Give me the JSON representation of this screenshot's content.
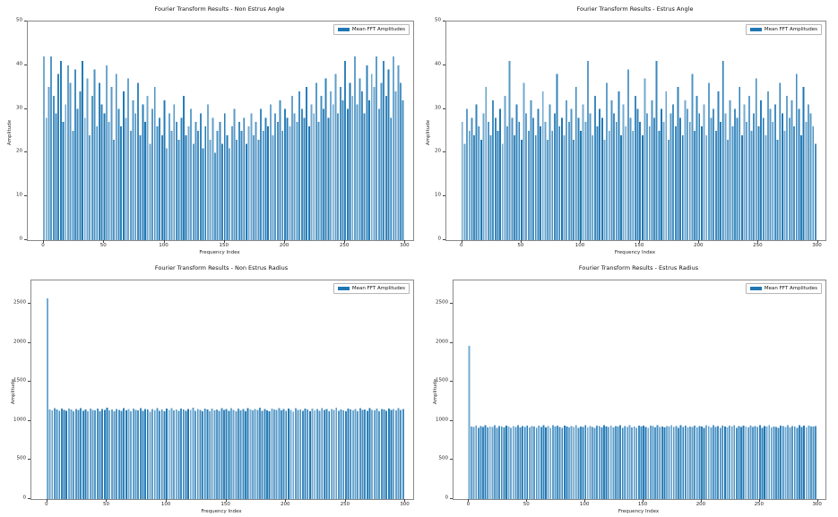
{
  "page": {
    "background": "#ffffff",
    "bar_color": "#1f77b4",
    "spine_color": "#8a8a8a"
  },
  "chart_data": [
    {
      "id": "non-estrus-angle",
      "type": "bar",
      "title": "Fourier Transform Results - Non Estrus Angle",
      "xlabel": "Frequency Index",
      "ylabel": "Amplitude",
      "legend": [
        "Mean FFT Amplitudes"
      ],
      "legend_position": "upper right",
      "grid": false,
      "xticks": [
        0,
        50,
        100,
        150,
        200,
        250,
        300
      ],
      "yticks": [
        0,
        10,
        20,
        30,
        40,
        50
      ],
      "ylim": [
        0,
        50
      ],
      "x_start": 0,
      "x_step": 2,
      "values": [
        42,
        28,
        35,
        42,
        33,
        29,
        38,
        41,
        27,
        31,
        40,
        36,
        25,
        39,
        30,
        34,
        41,
        28,
        37,
        24,
        33,
        39,
        26,
        36,
        31,
        29,
        40,
        27,
        35,
        23,
        38,
        30,
        26,
        34,
        28,
        37,
        25,
        32,
        29,
        36,
        24,
        31,
        27,
        33,
        22,
        30,
        35,
        26,
        28,
        24,
        32,
        21,
        29,
        25,
        31,
        27,
        23,
        28,
        33,
        24,
        26,
        30,
        22,
        27,
        25,
        29,
        21,
        26,
        31,
        23,
        28,
        20,
        25,
        27,
        22,
        29,
        24,
        21,
        26,
        30,
        23,
        27,
        25,
        28,
        22,
        26,
        29,
        24,
        27,
        23,
        30,
        25,
        28,
        26,
        31,
        24,
        29,
        27,
        32,
        25,
        30,
        28,
        26,
        33,
        29,
        27,
        34,
        30,
        28,
        35,
        26,
        31,
        29,
        36,
        27,
        33,
        30,
        37,
        28,
        34,
        31,
        38,
        29,
        35,
        32,
        41,
        30,
        36,
        33,
        42,
        31,
        37,
        34,
        29,
        40,
        32,
        38,
        35,
        42,
        30,
        36,
        41,
        33,
        39,
        28,
        42,
        34,
        40,
        36,
        32
      ]
    },
    {
      "id": "estrus-angle",
      "type": "bar",
      "title": "Fourier Transform Results - Estrus Angle",
      "xlabel": "Frequency Index",
      "ylabel": "Amplitude",
      "legend": [
        "Mean FFT Amplitudes"
      ],
      "legend_position": "upper right",
      "grid": false,
      "xticks": [
        0,
        50,
        100,
        150,
        200,
        250,
        300
      ],
      "yticks": [
        0,
        10,
        20,
        30,
        40,
        50
      ],
      "ylim": [
        0,
        50
      ],
      "x_start": 0,
      "x_step": 2,
      "values": [
        27,
        22,
        30,
        25,
        28,
        24,
        31,
        26,
        23,
        29,
        35,
        27,
        24,
        32,
        28,
        25,
        30,
        22,
        33,
        26,
        41,
        28,
        24,
        31,
        27,
        23,
        36,
        29,
        25,
        32,
        28,
        24,
        30,
        26,
        34,
        27,
        23,
        31,
        25,
        29,
        38,
        26,
        28,
        24,
        32,
        27,
        30,
        23,
        35,
        28,
        25,
        31,
        27,
        41,
        29,
        24,
        33,
        26,
        30,
        28,
        23,
        36,
        25,
        32,
        29,
        27,
        34,
        24,
        31,
        26,
        39,
        28,
        25,
        33,
        30,
        27,
        24,
        37,
        29,
        26,
        32,
        28,
        41,
        25,
        30,
        27,
        34,
        23,
        29,
        31,
        26,
        35,
        28,
        24,
        32,
        30,
        27,
        38,
        25,
        33,
        29,
        26,
        31,
        24,
        36,
        28,
        30,
        25,
        34,
        27,
        41,
        29,
        23,
        32,
        26,
        30,
        28,
        35,
        24,
        31,
        27,
        33,
        25,
        29,
        37,
        26,
        32,
        28,
        24,
        34,
        30,
        27,
        31,
        23,
        36,
        29,
        25,
        33,
        28,
        32,
        26,
        38,
        30,
        24,
        35,
        27,
        31,
        29,
        26,
        22
      ]
    },
    {
      "id": "non-estrus-radius",
      "type": "bar",
      "title": "Fourier Transform Results - Non Estrus Radius",
      "xlabel": "Frequency Index",
      "ylabel": "Amplitude",
      "legend": [
        "Mean FFT Amplitudes"
      ],
      "legend_position": "upper right",
      "grid": false,
      "xticks": [
        0,
        50,
        100,
        150,
        200,
        250,
        300
      ],
      "yticks": [
        0,
        500,
        1000,
        1500,
        2000,
        2500
      ],
      "ylim": [
        0,
        2800
      ],
      "x_start": 0,
      "x_step": 2,
      "values": [
        2570,
        1150,
        1138,
        1162,
        1145,
        1128,
        1157,
        1141,
        1133,
        1160,
        1147,
        1125,
        1154,
        1139,
        1165,
        1131,
        1148,
        1122,
        1158,
        1143,
        1136,
        1161,
        1127,
        1152,
        1140,
        1168,
        1134,
        1149,
        1123,
        1156,
        1144,
        1130,
        1163,
        1137,
        1151,
        1126,
        1159,
        1142,
        1135,
        1166,
        1129,
        1153,
        1146,
        1121,
        1155,
        1138,
        1164,
        1132,
        1150,
        1124,
        1157,
        1141,
        1167,
        1136,
        1148,
        1128,
        1160,
        1145,
        1133,
        1154,
        1139,
        1170,
        1131,
        1152,
        1143,
        1126,
        1158,
        1147,
        1122,
        1161,
        1135,
        1150,
        1129,
        1164,
        1140,
        1155,
        1132,
        1166,
        1144,
        1127,
        1159,
        1138,
        1151,
        1123,
        1162,
        1146,
        1134,
        1156,
        1142,
        1168,
        1130,
        1153,
        1137,
        1125,
        1160,
        1148,
        1141,
        1163,
        1136,
        1152,
        1128,
        1157,
        1144,
        1121,
        1165,
        1139,
        1149,
        1133,
        1158,
        1145,
        1126,
        1161,
        1137,
        1154,
        1130,
        1167,
        1143,
        1151,
        1124,
        1156,
        1140,
        1169,
        1132,
        1147,
        1138,
        1122,
        1159,
        1146,
        1135,
        1153,
        1127,
        1162,
        1141,
        1150,
        1131,
        1164,
        1144,
        1136,
        1157,
        1123,
        1155,
        1148,
        1129,
        1160,
        1142,
        1152,
        1134,
        1166,
        1139,
        1151
      ]
    },
    {
      "id": "estrus-radius",
      "type": "bar",
      "title": "Fourier Transform Results - Estrus Radius",
      "xlabel": "Frequency Index",
      "ylabel": "Amplitude",
      "legend": [
        "Mean FFT Amplitudes"
      ],
      "legend_position": "upper right",
      "grid": false,
      "xticks": [
        0,
        50,
        100,
        150,
        200,
        250,
        300
      ],
      "yticks": [
        0,
        500,
        1000,
        1500,
        2000,
        2500
      ],
      "ylim": [
        0,
        2800
      ],
      "x_start": 0,
      "x_step": 2,
      "values": [
        1960,
        930,
        922,
        941,
        915,
        935,
        926,
        944,
        918,
        932,
        923,
        947,
        912,
        936,
        928,
        919,
        942,
        931,
        914,
        938,
        925,
        946,
        917,
        933,
        921,
        943,
        916,
        937,
        929,
        911,
        940,
        924,
        948,
        920,
        934,
        913,
        945,
        927,
        939,
        922,
        915,
        941,
        930,
        918,
        936,
        925,
        947,
        914,
        932,
        923,
        944,
        917,
        938,
        926,
        912,
        942,
        935,
        919,
        946,
        928,
        921,
        940,
        916,
        933,
        929,
        948,
        913,
        937,
        924,
        945,
        920,
        931,
        915,
        943,
        927,
        939,
        922,
        911,
        941,
        934,
        918,
        946,
        925,
        932,
        916,
        938,
        929,
        944,
        921,
        935,
        913,
        947,
        926,
        940,
        919,
        930,
        923,
        942,
        917,
        936,
        928,
        914,
        945,
        933,
        920,
        948,
        924,
        937,
        912,
        941,
        931,
        918,
        939,
        927,
        946,
        915,
        934,
        922,
        943,
        929,
        916,
        940,
        925,
        935,
        921,
        947,
        913,
        938,
        930,
        944,
        917,
        932,
        926,
        911,
        942,
        936,
        923,
        948,
        919,
        933,
        928,
        914,
        945,
        924,
        939,
        920,
        941,
        931,
        927,
        934
      ]
    }
  ]
}
